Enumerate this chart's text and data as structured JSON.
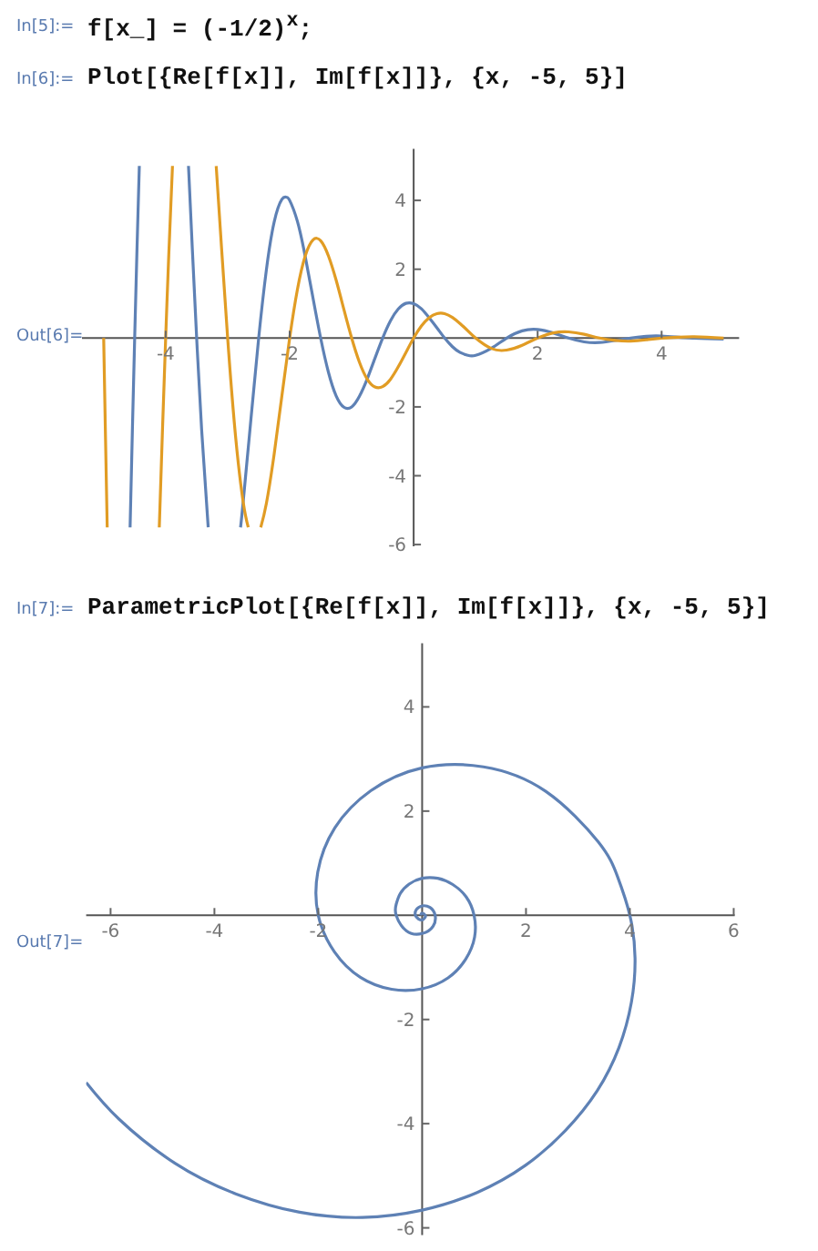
{
  "chart_data": [
    {
      "type": "line",
      "title": "Plot[{Re[f[x]], Im[f[x]]}, {x, -5, 5}]",
      "annotations": [
        "In[5]:=",
        "f[x_] = (-1/2)$^{x}$;",
        "In[6]:=",
        "Out[6]="
      ],
      "xlim": [
        -5.35,
        5.25
      ],
      "ylim": [
        -6.05,
        5.5
      ],
      "xticks": [
        -4,
        -2,
        2,
        4
      ],
      "yticks": [
        -6,
        -4,
        -2,
        2,
        4
      ],
      "series": [
        {
          "color": "#5e81b5",
          "x": [
            -4.574,
            -4.537,
            -4.5,
            -4.463,
            -4.425,
            -4,
            -3.632,
            -3.57,
            -3.5,
            -3.42,
            -3.314,
            -3,
            -2.792,
            -2.75,
            -2.625,
            -2.5,
            -2.375,
            -2.25,
            -2.125,
            -2.05,
            -2,
            -1.875,
            -1.75,
            -1.625,
            -1.5,
            -1.375,
            -1.25,
            -1.125,
            -1,
            -0.875,
            -0.75,
            -0.625,
            -0.5,
            -0.375,
            -0.25,
            -0.125,
            0,
            0.125,
            0.25,
            0.375,
            0.5,
            0.625,
            0.75,
            0.875,
            1,
            1.25,
            1.5,
            1.75,
            2,
            2.25,
            2.5,
            2.75,
            3,
            3.25,
            3.5,
            3.75,
            4,
            4.5,
            5
          ],
          "values": [
            -5.5,
            -2.69,
            0,
            2.56,
            5,
            null,
            5,
            2.59,
            0,
            -2.66,
            -5.5,
            null,
            -5.5,
            -4.76,
            -2.36,
            0,
            1.99,
            3.37,
            4.03,
            4.09,
            4,
            3.39,
            2.38,
            1.18,
            0,
            -0.99,
            -1.68,
            -2.01,
            -2,
            -1.69,
            -1.19,
            -0.59,
            0,
            0.5,
            0.84,
            1.01,
            1,
            0.85,
            0.59,
            0.3,
            0,
            -0.25,
            -0.42,
            -0.5,
            -0.5,
            -0.3,
            0,
            0.21,
            0.25,
            0.15,
            0,
            -0.11,
            -0.13,
            -0.07,
            0,
            0.05,
            0.06,
            0,
            -0.03
          ]
        },
        {
          "color": "#e19c24",
          "x": [
            -5,
            -4.97,
            -4.943,
            -4.5,
            -4.103,
            -4.05,
            -4,
            -3.95,
            -3.89,
            -3.5,
            -3.185,
            -3.1,
            -3,
            -2.875,
            -2.75,
            -2.668,
            -2.55,
            -2.466,
            -2.375,
            -2.25,
            -2.125,
            -2,
            -1.875,
            -1.75,
            -1.625,
            -1.5,
            -1.375,
            -1.25,
            -1.125,
            -1,
            -0.875,
            -0.75,
            -0.625,
            -0.5,
            -0.375,
            -0.25,
            -0.125,
            0,
            0.125,
            0.25,
            0.375,
            0.5,
            0.625,
            0.75,
            0.875,
            1,
            1.25,
            1.5,
            1.75,
            2,
            2.25,
            2.5,
            2.75,
            3,
            3.25,
            3.5,
            3.75,
            4,
            4.5,
            5
          ],
          "values": [
            0,
            -2.95,
            -5.5,
            null,
            -5.5,
            -2.59,
            0,
            2.42,
            5,
            null,
            5,
            2.65,
            0,
            -2.81,
            -4.76,
            -5.5,
            null,
            -5.5,
            -4.8,
            -3.37,
            -1.67,
            0,
            1.41,
            2.38,
            2.85,
            2.83,
            2.39,
            1.68,
            0.83,
            0,
            -0.7,
            -1.19,
            -1.42,
            -1.41,
            -1.2,
            -0.84,
            -0.42,
            0,
            0.35,
            0.59,
            0.71,
            0.71,
            0.6,
            0.42,
            0.21,
            0,
            -0.3,
            -0.35,
            -0.21,
            0,
            0.15,
            0.18,
            0.11,
            0,
            -0.07,
            -0.09,
            -0.05,
            0,
            0.04,
            0
          ]
        }
      ]
    },
    {
      "type": "line",
      "title": "ParametricPlot[{Re[f[x]], Im[f[x]]}, {x, -5, 5}]",
      "annotations": [
        "In[7]:=",
        "Out[7]="
      ],
      "xlim": [
        -6.47,
        6.02
      ],
      "ylim": [
        -6.14,
        5.22
      ],
      "xticks": [
        -6,
        -4,
        -2,
        2,
        4,
        6
      ],
      "yticks": [
        -6,
        -4,
        -2,
        2,
        4
      ],
      "series": [
        {
          "color": "#5e81b5",
          "x": [
            -6.47,
            -5.84,
            -4.76,
            -3.58,
            -2.36,
            -1.15,
            0,
            1.06,
            1.99,
            2.76,
            3.37,
            3.79,
            4.03,
            4.1,
            4,
            3.76,
            3.39,
            2.38,
            1.18,
            0,
            -0.99,
            -1.68,
            -2.01,
            -2,
            -1.69,
            -1.19,
            -0.59,
            0,
            0.5,
            0.84,
            1.01,
            1,
            0.85,
            0.59,
            0.3,
            0,
            -0.25,
            -0.42,
            -0.5,
            -0.5,
            -0.3,
            0,
            0.21,
            0.25,
            0.15,
            0,
            -0.11,
            -0.13,
            -0.07,
            0,
            0.05,
            0.06,
            0,
            -0.03
          ],
          "values": [
            -3.21,
            -3.91,
            -4.76,
            -5.35,
            -5.7,
            -5.8,
            -5.66,
            -5.32,
            -4.8,
            -4.13,
            -3.37,
            -2.54,
            -1.67,
            -0.82,
            0,
            0.75,
            1.41,
            2.38,
            2.85,
            2.83,
            2.39,
            1.68,
            0.83,
            0,
            -0.7,
            -1.19,
            -1.42,
            -1.41,
            -1.2,
            -0.84,
            -0.42,
            0,
            0.35,
            0.59,
            0.71,
            0.71,
            0.6,
            0.42,
            0.21,
            0,
            -0.3,
            -0.35,
            -0.21,
            0,
            0.15,
            0.18,
            0.11,
            0,
            -0.07,
            -0.09,
            -0.05,
            0,
            0.04,
            0
          ]
        }
      ]
    }
  ]
}
